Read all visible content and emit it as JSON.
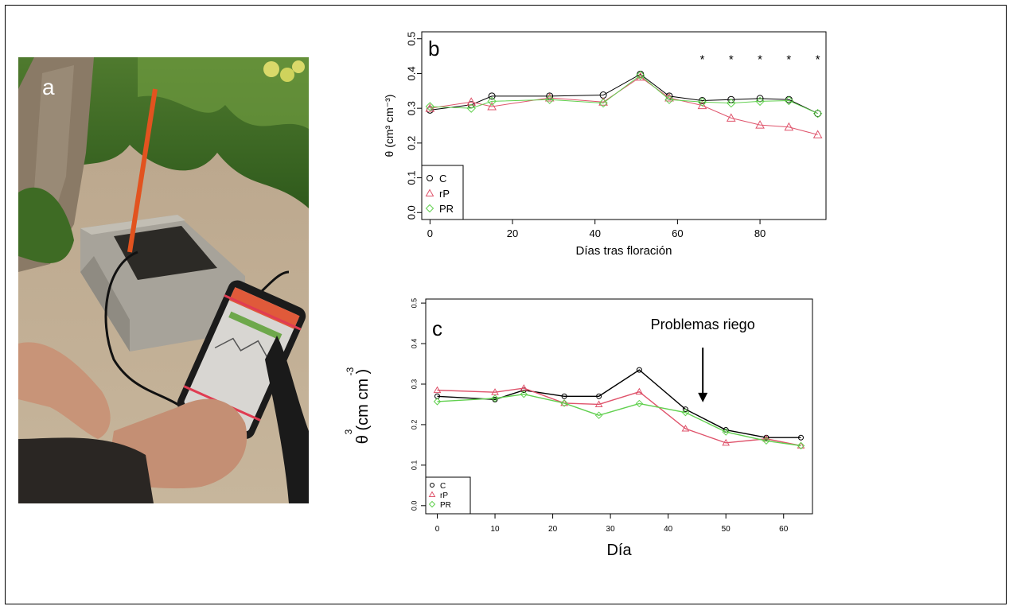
{
  "panel_a": {
    "letter": "a",
    "photo_description_icon": "photo-soil-moisture-probe-icon"
  },
  "chart_data": [
    {
      "panel": "b",
      "type": "line",
      "title": "",
      "xlabel": "Días tras floración",
      "ylabel": "θ (cm³ cm⁻³)",
      "xlim": [
        -2,
        96
      ],
      "ylim": [
        -0.02,
        0.52
      ],
      "xticks": [
        0,
        20,
        40,
        60,
        80
      ],
      "yticks": [
        0.0,
        0.1,
        0.2,
        0.3,
        0.4,
        0.5
      ],
      "ytick_labels": [
        "0.0",
        "0.1",
        "0.2",
        "0.3",
        "0.4",
        "0.5"
      ],
      "grid": false,
      "legend_position": "bottom-left",
      "annotations": [
        {
          "text": "*",
          "x": 66
        },
        {
          "text": "*",
          "x": 73
        },
        {
          "text": "*",
          "x": 80
        },
        {
          "text": "*",
          "x": 87
        },
        {
          "text": "*",
          "x": 94
        }
      ],
      "x": [
        0,
        10,
        15,
        29,
        42,
        51,
        58,
        66,
        73,
        80,
        87,
        94
      ],
      "series": [
        {
          "name": "C",
          "color": "#000000",
          "marker": "circle",
          "values": [
            0.295,
            0.31,
            0.335,
            0.335,
            0.338,
            0.398,
            0.335,
            0.322,
            0.325,
            0.328,
            0.325,
            0.285
          ]
        },
        {
          "name": "rP",
          "color": "#df536b",
          "marker": "triangle",
          "values": [
            0.3,
            0.318,
            0.305,
            0.33,
            0.318,
            0.39,
            0.33,
            0.308,
            0.272,
            0.252,
            0.246,
            0.224
          ]
        },
        {
          "name": "PR",
          "color": "#61d04f",
          "marker": "diamond",
          "values": [
            0.305,
            0.3,
            0.32,
            0.325,
            0.315,
            0.395,
            0.325,
            0.318,
            0.315,
            0.32,
            0.322,
            0.285
          ]
        }
      ]
    },
    {
      "panel": "c",
      "type": "line",
      "title": "",
      "xlabel": "Día",
      "ylabel": "θ (cm cm )",
      "ylabel_exponents": [
        "3",
        "-3"
      ],
      "xlim": [
        -2,
        65
      ],
      "ylim": [
        -0.02,
        0.51
      ],
      "xticks": [
        0,
        10,
        20,
        30,
        40,
        50,
        60
      ],
      "yticks": [
        0.0,
        0.1,
        0.2,
        0.3,
        0.4,
        0.5
      ],
      "ytick_labels": [
        "0.0",
        "0.1",
        "0.2",
        "0.3",
        "0.4",
        "0.5"
      ],
      "grid": false,
      "legend_position": "bottom-left",
      "annotation": {
        "text": "Problemas riego",
        "arrow_x": 46,
        "arrow_from_y": 0.39,
        "arrow_to_y": 0.255
      },
      "x": [
        0,
        10,
        15,
        22,
        28,
        35,
        43,
        50,
        57,
        63
      ],
      "series": [
        {
          "name": "C",
          "color": "#000000",
          "marker": "circle",
          "values": [
            0.27,
            0.262,
            0.285,
            0.27,
            0.27,
            0.335,
            0.238,
            0.187,
            0.168,
            0.168
          ]
        },
        {
          "name": "rP",
          "color": "#df536b",
          "marker": "triangle",
          "values": [
            0.285,
            0.28,
            0.29,
            0.253,
            0.25,
            0.281,
            0.19,
            0.155,
            0.165,
            0.148
          ]
        },
        {
          "name": "PR",
          "color": "#61d04f",
          "marker": "diamond",
          "values": [
            0.257,
            0.265,
            0.275,
            0.253,
            0.223,
            0.252,
            0.23,
            0.182,
            0.16,
            0.148
          ]
        }
      ]
    }
  ]
}
